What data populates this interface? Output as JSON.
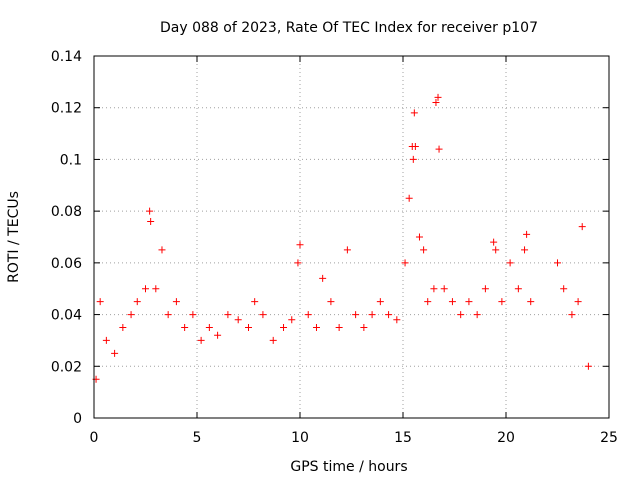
{
  "chart_data": {
    "type": "scatter",
    "title": "Day 088 of 2023, Rate Of TEC Index for receiver p107",
    "xlabel": "GPS time / hours",
    "ylabel": "ROTI / TECUs",
    "xlim": [
      0,
      25
    ],
    "ylim": [
      0,
      0.14
    ],
    "xticks": [
      0,
      5,
      10,
      15,
      20,
      25
    ],
    "yticks": [
      0,
      0.02,
      0.04,
      0.06,
      0.08,
      0.1,
      0.12,
      0.14
    ],
    "grid": true,
    "marker": "plus",
    "color": "#ff0000",
    "series": [
      {
        "x": [
          0.1,
          0.3,
          0.6,
          1.0,
          1.4,
          1.8,
          2.1,
          2.5,
          2.7,
          2.75,
          3.0,
          3.3,
          3.6,
          4.0,
          4.4,
          4.8,
          5.2,
          5.6,
          6.0,
          6.5,
          7.0,
          7.5,
          7.8,
          8.2,
          8.7,
          9.2,
          9.6,
          9.9,
          10.0,
          10.4,
          10.8,
          11.1,
          11.5,
          11.9,
          12.3,
          12.7,
          13.1,
          13.5,
          13.9,
          14.3,
          14.7,
          15.1,
          15.3,
          15.45,
          15.5,
          15.55,
          15.6,
          15.8,
          16.0,
          16.2,
          16.5,
          16.6,
          16.7,
          16.75,
          17.0,
          17.4,
          17.8,
          18.2,
          18.6,
          19.0,
          19.4,
          19.5,
          19.8,
          20.2,
          20.6,
          20.9,
          21.0,
          21.2,
          22.5,
          22.8,
          23.2,
          23.5,
          23.7,
          24.0
        ],
        "y": [
          0.015,
          0.045,
          0.03,
          0.025,
          0.035,
          0.04,
          0.045,
          0.05,
          0.08,
          0.076,
          0.05,
          0.065,
          0.04,
          0.045,
          0.035,
          0.04,
          0.03,
          0.035,
          0.032,
          0.04,
          0.038,
          0.035,
          0.045,
          0.04,
          0.03,
          0.035,
          0.038,
          0.06,
          0.067,
          0.04,
          0.035,
          0.054,
          0.045,
          0.035,
          0.065,
          0.04,
          0.035,
          0.04,
          0.045,
          0.04,
          0.038,
          0.06,
          0.085,
          0.105,
          0.1,
          0.118,
          0.105,
          0.07,
          0.065,
          0.045,
          0.05,
          0.122,
          0.124,
          0.104,
          0.05,
          0.045,
          0.04,
          0.045,
          0.04,
          0.05,
          0.068,
          0.065,
          0.045,
          0.06,
          0.05,
          0.065,
          0.071,
          0.045,
          0.06,
          0.05,
          0.04,
          0.045,
          0.074,
          0.02
        ]
      }
    ]
  }
}
